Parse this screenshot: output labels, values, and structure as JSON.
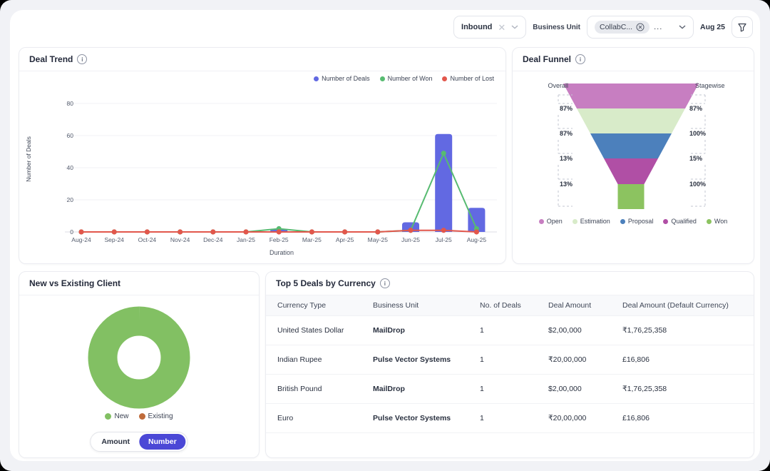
{
  "filter_bar": {
    "channel_filter": {
      "value": "Inbound"
    },
    "business_unit_label": "Business Unit",
    "business_unit_filter": {
      "selected_chip": "CollabC...",
      "overflow": "..."
    },
    "date_filter": "Aug 25"
  },
  "deal_trend": {
    "title": "Deal Trend",
    "chart_data": {
      "type": "combo",
      "x": [
        "Aug-24",
        "Sep-24",
        "Oct-24",
        "Nov-24",
        "Dec-24",
        "Jan-25",
        "Feb-25",
        "Mar-25",
        "Apr-25",
        "May-25",
        "Jun-25",
        "Jul-25",
        "Aug-25"
      ],
      "series": [
        {
          "name": "Number of Deals",
          "kind": "bar",
          "color": "#6269E2",
          "values": [
            0,
            0,
            0,
            0,
            0,
            0,
            2,
            0,
            0,
            0,
            6,
            61,
            15
          ]
        },
        {
          "name": "Number of Won",
          "kind": "line",
          "color": "#57BB71",
          "values": [
            0,
            0,
            0,
            0,
            0,
            0,
            2,
            0,
            0,
            0,
            1,
            49,
            2
          ]
        },
        {
          "name": "Number of Lost",
          "kind": "line",
          "color": "#E2574C",
          "values": [
            0,
            0,
            0,
            0,
            0,
            0,
            0,
            0,
            0,
            0,
            1,
            1,
            0
          ]
        }
      ],
      "xlabel": "Duration",
      "ylabel": "Number of Deals",
      "ylim": [
        0,
        80
      ],
      "yticks": [
        0,
        20,
        40,
        60,
        80
      ],
      "grid": true,
      "legend_position": "top-right"
    }
  },
  "deal_funnel": {
    "title": "Deal Funnel",
    "chart_data": {
      "type": "funnel",
      "left_header": "Overall",
      "right_header": "Stagewise",
      "stages": [
        {
          "name": "Open",
          "color": "#C77EC1"
        },
        {
          "name": "Estimation",
          "color": "#D8EBC9"
        },
        {
          "name": "Proposal",
          "color": "#4C80BC"
        },
        {
          "name": "Qualified",
          "color": "#B04FA5"
        },
        {
          "name": "Won",
          "color": "#8CC360"
        }
      ],
      "overall_pcts": [
        "87%",
        "87%",
        "13%",
        "13%"
      ],
      "stagewise_pcts": [
        "87%",
        "100%",
        "15%",
        "100%"
      ]
    }
  },
  "client_split": {
    "title": "New vs Existing Client",
    "chart_data": {
      "type": "donut",
      "segments": [
        {
          "label": "New",
          "value": 100,
          "color": "#82C063"
        },
        {
          "label": "Existing",
          "value": 0,
          "color": "#BF6B3B"
        }
      ]
    },
    "toggle": {
      "options": [
        "Amount",
        "Number"
      ],
      "active": "Number"
    }
  },
  "top_deals": {
    "title": "Top 5 Deals by Currency",
    "columns": [
      "Currency Type",
      "Business Unit",
      "No. of Deals",
      "Deal Amount",
      "Deal Amount (Default Currency)"
    ],
    "rows": [
      [
        "United States Dollar",
        "MailDrop",
        "1",
        "$2,00,000",
        "₹1,76,25,358"
      ],
      [
        "Indian Rupee",
        "Pulse Vector Systems",
        "1",
        "₹20,00,000",
        "£16,806"
      ],
      [
        "British Pound",
        "MailDrop",
        "1",
        "$2,00,000",
        "₹1,76,25,358"
      ],
      [
        "Euro",
        "Pulse Vector Systems",
        "1",
        "₹20,00,000",
        "£16,806"
      ]
    ]
  }
}
